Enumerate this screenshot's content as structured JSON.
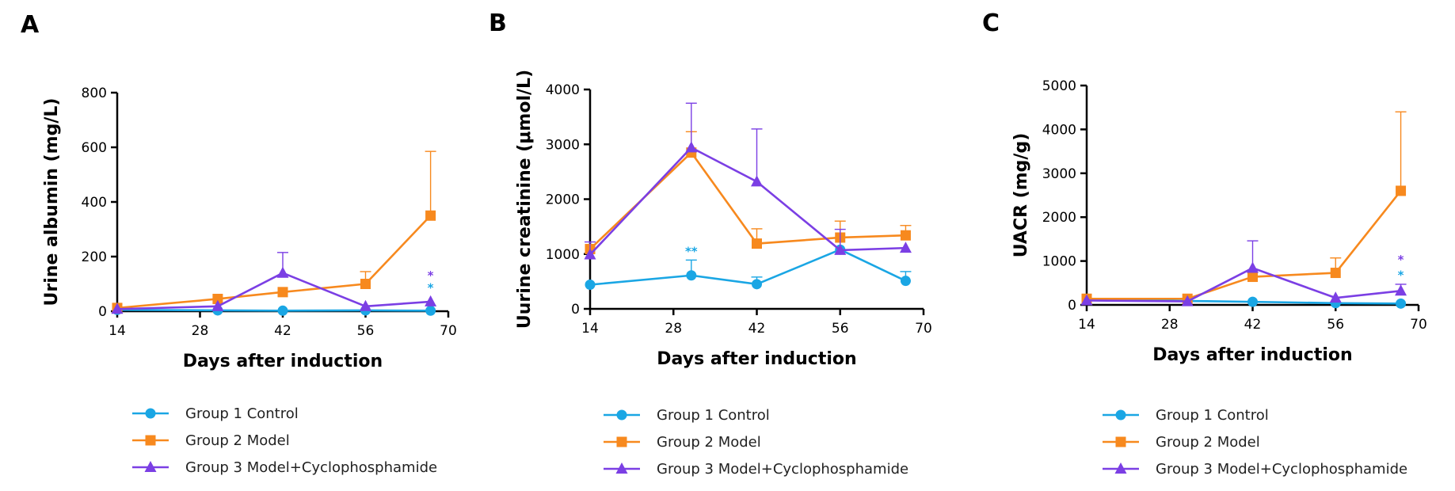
{
  "legend": [
    {
      "name": "Group 1 Control",
      "color": "#1aa6e4",
      "marker": "circle"
    },
    {
      "name": "Group 2 Model",
      "color": "#f7891e",
      "marker": "square"
    },
    {
      "name": "Group 3 Model+Cyclophosphamide",
      "color": "#7b3fe4",
      "marker": "triangle"
    }
  ],
  "chart_data": [
    {
      "type": "line",
      "panel": "A",
      "xlabel": "Days after induction",
      "ylabel": "Urine albumin (mg/L)",
      "xlim": [
        14,
        70
      ],
      "ylim": [
        0,
        800
      ],
      "xticks": [
        14,
        28,
        42,
        56,
        70
      ],
      "yticks": [
        0,
        200,
        400,
        600,
        800
      ],
      "series": [
        {
          "name": "Group 1 Control",
          "color": "#1aa6e4",
          "marker": "circle",
          "x": [
            14,
            31,
            42,
            56,
            67
          ],
          "y": [
            5,
            3,
            2,
            3,
            2
          ],
          "err": [
            0,
            0,
            0,
            0,
            0
          ]
        },
        {
          "name": "Group 2 Model",
          "color": "#f7891e",
          "marker": "square",
          "x": [
            14,
            31,
            42,
            56,
            67
          ],
          "y": [
            12,
            45,
            70,
            100,
            350
          ],
          "err": [
            0,
            0,
            0,
            45,
            235
          ]
        },
        {
          "name": "Group 3 Model+Cyclophosphamide",
          "color": "#7b3fe4",
          "marker": "triangle",
          "x": [
            14,
            31,
            42,
            56,
            67
          ],
          "y": [
            8,
            18,
            140,
            18,
            35
          ],
          "err": [
            0,
            0,
            75,
            0,
            0
          ]
        }
      ],
      "annotations": [
        {
          "text": "*",
          "x": 67,
          "y": 130,
          "color": "#7b3fe4"
        },
        {
          "text": "*",
          "x": 67,
          "y": 85,
          "color": "#1aa6e4"
        }
      ]
    },
    {
      "type": "line",
      "panel": "B",
      "xlabel": "Days after induction",
      "ylabel": "Uurine creatinine (μmol/L)",
      "xlim": [
        14,
        70
      ],
      "ylim": [
        0,
        4000
      ],
      "xticks": [
        14,
        28,
        42,
        56,
        70
      ],
      "yticks": [
        0,
        1000,
        2000,
        3000,
        4000
      ],
      "series": [
        {
          "name": "Group 1 Control",
          "color": "#1aa6e4",
          "marker": "circle",
          "x": [
            14,
            31,
            42,
            56,
            67
          ],
          "y": [
            440,
            610,
            450,
            1080,
            510
          ],
          "err": [
            0,
            280,
            130,
            0,
            170
          ]
        },
        {
          "name": "Group 2 Model",
          "color": "#f7891e",
          "marker": "square",
          "x": [
            14,
            31,
            42,
            56,
            67
          ],
          "y": [
            1090,
            2850,
            1190,
            1300,
            1340
          ],
          "err": [
            0,
            380,
            270,
            300,
            180
          ]
        },
        {
          "name": "Group 3 Model+Cyclophosphamide",
          "color": "#7b3fe4",
          "marker": "triangle",
          "x": [
            14,
            31,
            42,
            56,
            67
          ],
          "y": [
            990,
            2940,
            2320,
            1070,
            1110
          ],
          "err": [
            230,
            810,
            960,
            380,
            0
          ]
        }
      ],
      "annotations": [
        {
          "text": "**",
          "x": 31,
          "y": 1050,
          "color": "#1aa6e4"
        }
      ]
    },
    {
      "type": "line",
      "panel": "C",
      "xlabel": "Days after induction",
      "ylabel": "UACR (mg/g)",
      "xlim": [
        14,
        70
      ],
      "ylim": [
        0,
        5000
      ],
      "xticks": [
        14,
        28,
        42,
        56,
        70
      ],
      "yticks": [
        0,
        1000,
        2000,
        3000,
        4000,
        5000
      ],
      "series": [
        {
          "name": "Group 1 Control",
          "color": "#1aa6e4",
          "marker": "circle",
          "x": [
            14,
            31,
            42,
            56,
            67
          ],
          "y": [
            120,
            90,
            70,
            40,
            30
          ],
          "err": [
            0,
            0,
            0,
            0,
            0
          ]
        },
        {
          "name": "Group 2 Model",
          "color": "#f7891e",
          "marker": "square",
          "x": [
            14,
            31,
            42,
            56,
            67
          ],
          "y": [
            140,
            140,
            640,
            730,
            2600
          ],
          "err": [
            0,
            0,
            0,
            340,
            1800
          ]
        },
        {
          "name": "Group 3 Model+Cyclophosphamide",
          "color": "#7b3fe4",
          "marker": "triangle",
          "x": [
            14,
            31,
            42,
            56,
            67
          ],
          "y": [
            100,
            80,
            840,
            160,
            320
          ],
          "err": [
            0,
            0,
            620,
            0,
            150
          ]
        }
      ],
      "annotations": [
        {
          "text": "*",
          "x": 67,
          "y": 1030,
          "color": "#7b3fe4"
        },
        {
          "text": "*",
          "x": 67,
          "y": 680,
          "color": "#1aa6e4"
        }
      ]
    }
  ]
}
